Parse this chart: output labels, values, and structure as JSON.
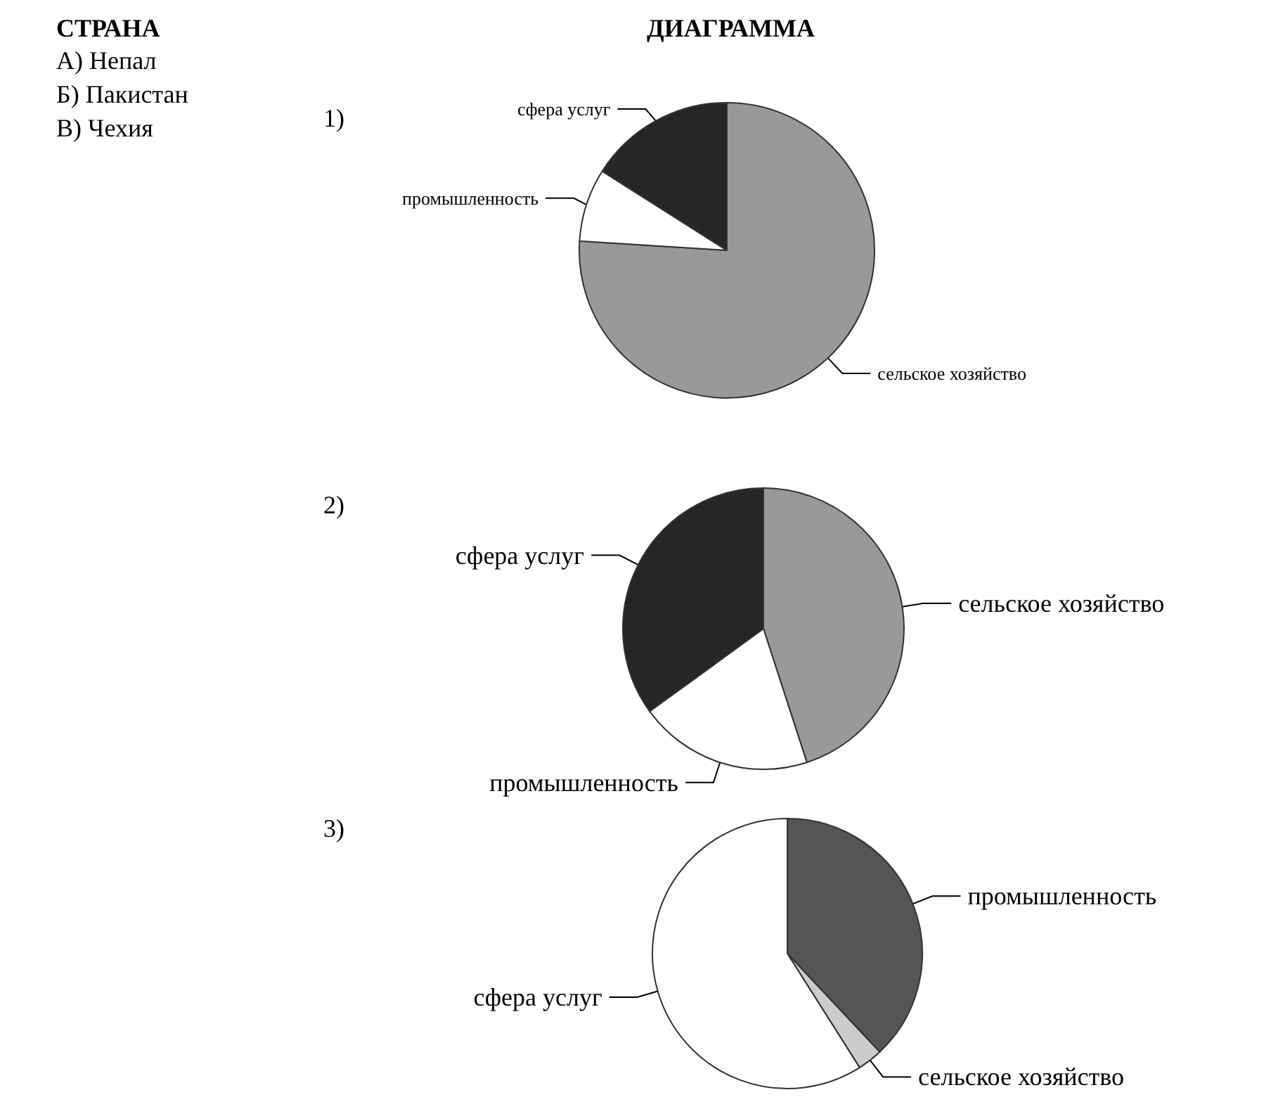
{
  "chart_data": [
    {
      "type": "other",
      "title": "СТРАНА",
      "annotations": [
        "А) Непал",
        "Б) Пакистан",
        "В) Чехия"
      ]
    },
    {
      "type": "other",
      "title": "ДИАГРАММА"
    },
    {
      "type": "pie",
      "title": "1)",
      "categories": [
        "сельское хозяйство",
        "промышленность",
        "сфера услуг"
      ],
      "values": [
        76,
        8,
        16
      ],
      "colors": [
        "#999999",
        "#ffffff",
        "#262626"
      ]
    },
    {
      "type": "pie",
      "title": "2)",
      "categories": [
        "сельское хозяйство",
        "промышленность",
        "сфера услуг"
      ],
      "values": [
        45,
        20,
        35
      ],
      "colors": [
        "#999999",
        "#ffffff",
        "#262626"
      ]
    },
    {
      "type": "pie",
      "title": "3)",
      "categories": [
        "промышленность",
        "сельское хозяйство",
        "сфера услуг"
      ],
      "values": [
        38,
        3,
        59
      ],
      "colors": [
        "#555555",
        "#cccccc",
        "#ffffff"
      ]
    }
  ]
}
